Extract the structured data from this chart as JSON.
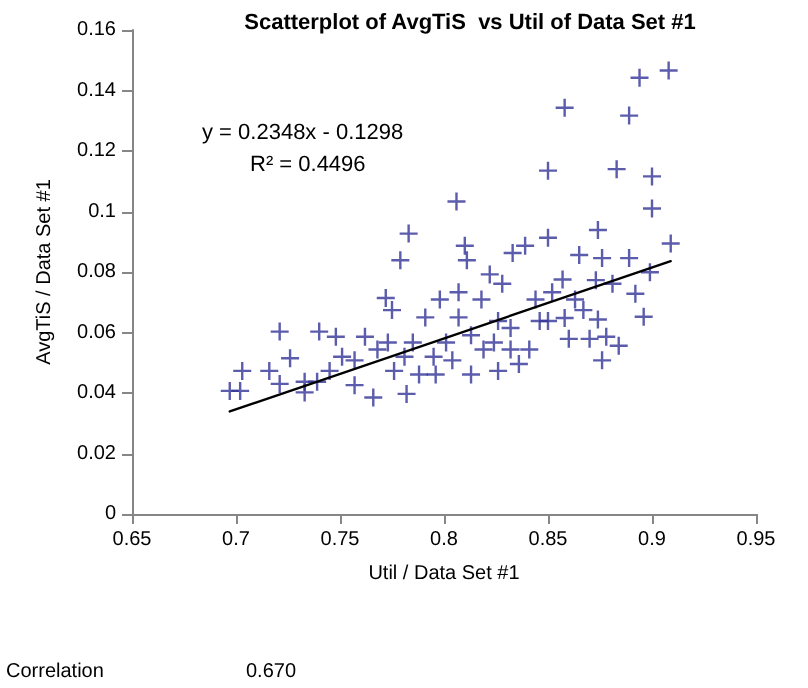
{
  "chart_data": {
    "type": "scatter",
    "title": "Scatterplot of AvgTiS  vs Util of Data Set #1",
    "xlabel": "Util / Data Set #1",
    "ylabel": "AvgTiS / Data Set #1",
    "annotations": [
      "y = 0.2348x - 0.1298",
      "R² = 0.4496",
      "Correlation",
      "0.670"
    ],
    "xlim": [
      0.65,
      0.95
    ],
    "xticks": [
      0.65,
      0.7,
      0.75,
      0.8,
      0.85,
      0.9,
      0.95
    ],
    "ylim": [
      0,
      0.16
    ],
    "yticks": [
      0,
      0.02,
      0.04,
      0.06,
      0.08,
      0.1,
      0.12,
      0.14,
      0.16
    ],
    "grid": false,
    "marker": "cross",
    "series": [
      {
        "color": "#333399",
        "x": [
          0.908,
          0.894,
          0.858,
          0.889,
          0.85,
          0.883,
          0.9,
          0.9,
          0.806,
          0.783,
          0.874,
          0.909,
          0.779,
          0.81,
          0.85,
          0.811,
          0.889,
          0.876,
          0.865,
          0.833,
          0.839,
          0.899,
          0.896,
          0.884,
          0.876,
          0.878,
          0.87,
          0.86,
          0.858,
          0.874,
          0.892,
          0.881,
          0.873,
          0.857,
          0.852,
          0.844,
          0.822,
          0.828,
          0.807,
          0.798,
          0.772,
          0.775,
          0.762,
          0.748,
          0.74,
          0.721,
          0.716,
          0.703,
          0.697,
          0.702,
          0.726,
          0.733,
          0.721,
          0.739,
          0.751,
          0.766,
          0.757,
          0.782,
          0.776,
          0.788,
          0.795,
          0.785,
          0.801,
          0.813,
          0.826,
          0.836,
          0.819,
          0.832,
          0.841,
          0.768,
          0.807,
          0.818,
          0.791,
          0.781,
          0.773,
          0.757,
          0.745,
          0.733,
          0.85,
          0.863,
          0.867,
          0.846,
          0.826,
          0.813,
          0.804,
          0.796,
          0.832,
          0.824
        ],
        "values": [
          0.1466,
          0.1442,
          0.1343,
          0.1317,
          0.1135,
          0.114,
          0.1116,
          0.101,
          0.1033,
          0.0927,
          0.0939,
          0.0894,
          0.0839,
          0.0887,
          0.0913,
          0.0839,
          0.0846,
          0.0846,
          0.0856,
          0.0863,
          0.0887,
          0.0799,
          0.0652,
          0.0556,
          0.0508,
          0.0586,
          0.0579,
          0.0579,
          0.0648,
          0.0643,
          0.0728,
          0.0761,
          0.0773,
          0.0775,
          0.0733,
          0.0709,
          0.0792,
          0.0761,
          0.0733,
          0.0709,
          0.0714,
          0.0674,
          0.0586,
          0.0586,
          0.0603,
          0.0603,
          0.0473,
          0.0473,
          0.0407,
          0.0407,
          0.0515,
          0.0402,
          0.043,
          0.0437,
          0.052,
          0.0385,
          0.0426,
          0.0397,
          0.0473,
          0.0461,
          0.052,
          0.0567,
          0.0567,
          0.0461,
          0.0473,
          0.0496,
          0.0544,
          0.0615,
          0.0544,
          0.0544,
          0.065,
          0.0709,
          0.065,
          0.052,
          0.0567,
          0.0508,
          0.0473,
          0.0437,
          0.0638,
          0.0709,
          0.0674,
          0.0638,
          0.0638,
          0.0591,
          0.0508,
          0.0461,
          0.0544,
          0.0567
        ]
      },
      {
        "type": "line",
        "marker": "none",
        "color": "#000000",
        "x": [
          0.697,
          0.909
        ],
        "values": [
          0.0339,
          0.0836
        ]
      }
    ]
  }
}
